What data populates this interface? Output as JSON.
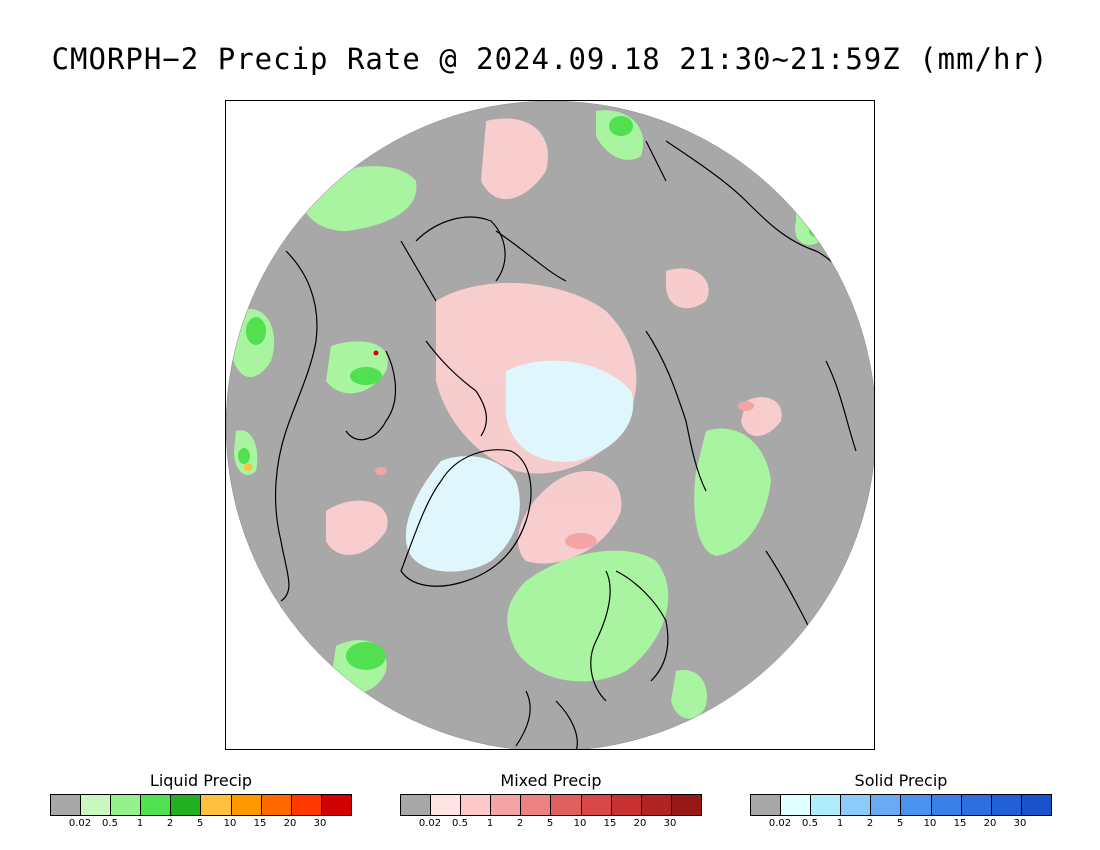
{
  "title": "CMORPH−2 Precip Rate @ 2024.09.18 21:30~21:59Z (mm/hr)",
  "map": {
    "projection": "north-polar-stereographic",
    "background_no_precip_color": "#a8a8a8",
    "coastline_color": "#000000"
  },
  "legends": [
    {
      "id": "liquid",
      "title": "Liquid Precip",
      "colors": [
        "#a8a8a8",
        "#c8f8c0",
        "#96f08c",
        "#50e050",
        "#22b022",
        "#ffc040",
        "#ff9800",
        "#ff6a00",
        "#ff3800",
        "#d20000"
      ],
      "ticks": [
        "0.02",
        "0.5",
        "1",
        "2",
        "5",
        "10",
        "15",
        "20",
        "30"
      ]
    },
    {
      "id": "mixed",
      "title": "Mixed Precip",
      "colors": [
        "#a8a8a8",
        "#ffe4e4",
        "#ffc8c8",
        "#f4a4a4",
        "#ec8282",
        "#e06060",
        "#d84848",
        "#c83232",
        "#b02424",
        "#981818"
      ],
      "ticks": [
        "0.02",
        "0.5",
        "1",
        "2",
        "5",
        "10",
        "15",
        "20",
        "30"
      ]
    },
    {
      "id": "solid",
      "title": "Solid Precip",
      "colors": [
        "#a8a8a8",
        "#e0ffff",
        "#b0ecfc",
        "#8ccaf8",
        "#6aaaf2",
        "#4a92ec",
        "#3a80e6",
        "#2e6ee0",
        "#2260d8",
        "#1a52cc"
      ],
      "ticks": [
        "0.02",
        "0.5",
        "1",
        "2",
        "5",
        "10",
        "15",
        "20",
        "30"
      ]
    }
  ]
}
